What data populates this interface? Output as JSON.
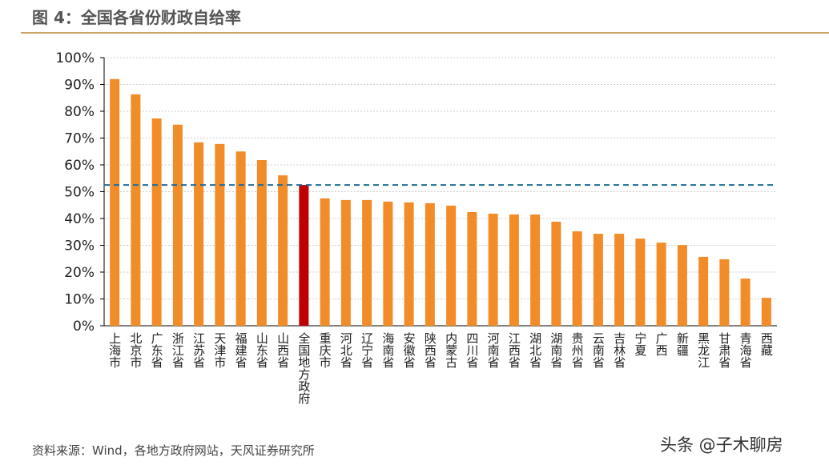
{
  "title": "图 4：全国各省份财政自给率",
  "source": "资料来源：Wind，各地方政府网站，天风证券研究所",
  "watermark": "头条 @子木聊房",
  "colors": {
    "bar": "#f28c28",
    "highlight": "#c00000",
    "line": "#1f6b99",
    "rule": "#c9a56a"
  },
  "chart_data": {
    "type": "bar",
    "title": "图 4：全国各省份财政自给率",
    "xlabel": "",
    "ylabel": "",
    "ylim": [
      0,
      100
    ],
    "yticks": [
      "0%",
      "10%",
      "20%",
      "30%",
      "40%",
      "50%",
      "60%",
      "70%",
      "80%",
      "90%",
      "100%"
    ],
    "grid": true,
    "categories": [
      "上海市",
      "北京市",
      "广东省",
      "浙江省",
      "江苏省",
      "天津市",
      "福建省",
      "山东省",
      "山西省",
      "全国地方政府",
      "重庆市",
      "河北省",
      "辽宁省",
      "海南省",
      "安徽省",
      "陕西省",
      "内蒙古",
      "四川省",
      "河南省",
      "江西省",
      "湖北省",
      "湖南省",
      "贵州省",
      "云南省",
      "吉林省",
      "宁夏",
      "广西",
      "新疆",
      "黑龙江",
      "甘肃省",
      "青海省",
      "西藏"
    ],
    "values": [
      92,
      86.3,
      77.3,
      75,
      68.4,
      67.8,
      65,
      61.8,
      56.1,
      52.5,
      47.5,
      46.9,
      46.9,
      46.3,
      46,
      45.7,
      44.8,
      42.4,
      41.8,
      41.5,
      41.5,
      38.8,
      35.2,
      34.3,
      34.3,
      32.5,
      31,
      30.1,
      25.7,
      24.8,
      17.6,
      10.4
    ],
    "highlight_index": 9,
    "reference_line": {
      "value": 52.5,
      "style": "dashed"
    }
  }
}
